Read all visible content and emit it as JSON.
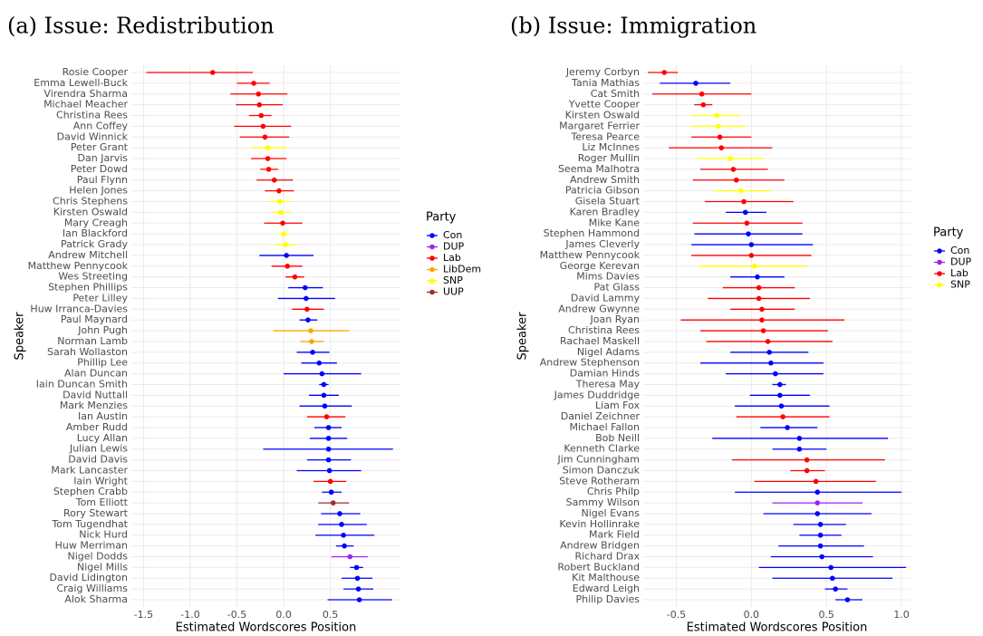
{
  "chart_data": [
    {
      "type": "errorbar",
      "title": "(a) Issue: Redistribution",
      "xlabel": "Estimated Wordscores Position",
      "ylabel": "Speaker",
      "legend_title": "Party",
      "parties": [
        {
          "name": "Con",
          "color": "#0000ff"
        },
        {
          "name": "DUP",
          "color": "#a020f0"
        },
        {
          "name": "Lab",
          "color": "#ff0000"
        },
        {
          "name": "LibDem",
          "color": "#ffa500"
        },
        {
          "name": "SNP",
          "color": "#ffff00"
        },
        {
          "name": "UUP",
          "color": "#a52a2a"
        }
      ],
      "xlim": [
        -1.63,
        1.25
      ],
      "xticks": [
        -1.5,
        {
          "value": -1,
          "label": "-1.0"
        },
        -0.5,
        {
          "value": 0,
          "label": "0.0"
        },
        0.5
      ],
      "grid": true,
      "categories": [
        "Rosie Cooper",
        "Emma Lewell-Buck",
        "Virendra Sharma",
        "Michael Meacher",
        "Christina Rees",
        "Ann Coffey",
        "David Winnick",
        "Peter Grant",
        "Dan Jarvis",
        "Peter Dowd",
        "Paul Flynn",
        "Helen Jones",
        "Chris Stephens",
        "Kirsten Oswald",
        "Mary Creagh",
        "Ian Blackford",
        "Patrick Grady",
        "Andrew Mitchell",
        "Matthew Pennycook",
        "Wes Streeting",
        "Stephen Phillips",
        "Peter Lilley",
        "Huw Irranca-Davies",
        "Paul Maynard",
        "John Pugh",
        "Norman Lamb",
        "Sarah Wollaston",
        "Phillip Lee",
        "Alan Duncan",
        "Iain Duncan Smith",
        "David Nuttall",
        "Mark Menzies",
        "Ian Austin",
        "Amber Rudd",
        "Lucy Allan",
        "Julian Lewis",
        "David Davis",
        "Mark Lancaster",
        "Iain Wright",
        "Stephen Crabb",
        "Tom Elliott",
        "Rory Stewart",
        "Tom Tugendhat",
        "Nick Hurd",
        "Huw Merriman",
        "Nigel Dodds",
        "Nigel Mills",
        "David Lidington",
        "Craig Williams",
        "Alok Sharma"
      ],
      "values": [
        -0.76,
        -0.32,
        -0.27,
        -0.26,
        -0.24,
        -0.22,
        -0.2,
        -0.17,
        -0.17,
        -0.16,
        -0.1,
        -0.05,
        -0.04,
        -0.03,
        -0.01,
        0,
        0.02,
        0.03,
        0.04,
        0.12,
        0.23,
        0.24,
        0.25,
        0.26,
        0.29,
        0.3,
        0.31,
        0.38,
        0.41,
        0.43,
        0.43,
        0.44,
        0.46,
        0.48,
        0.48,
        0.48,
        0.48,
        0.49,
        0.5,
        0.51,
        0.53,
        0.6,
        0.62,
        0.64,
        0.65,
        0.71,
        0.78,
        0.79,
        0.8,
        0.81
      ],
      "lower": [
        -1.47,
        -0.5,
        -0.57,
        -0.51,
        -0.37,
        -0.53,
        -0.47,
        -0.36,
        -0.35,
        -0.25,
        -0.29,
        -0.2,
        -0.15,
        -0.13,
        -0.21,
        -0.05,
        -0.09,
        -0.26,
        -0.13,
        0.02,
        0.05,
        -0.06,
        0.09,
        0.17,
        -0.11,
        0.18,
        0.14,
        0.19,
        0,
        0.38,
        0.27,
        0.17,
        0.25,
        0.33,
        0.28,
        -0.22,
        0.25,
        0.14,
        0.32,
        0.41,
        0.37,
        0.4,
        0.37,
        0.34,
        0.56,
        0.51,
        0.71,
        0.62,
        0.64,
        0.47
      ],
      "upper": [
        -0.33,
        -0.15,
        0.04,
        -0.01,
        -0.13,
        0.08,
        0.06,
        0.03,
        0.03,
        -0.06,
        0.1,
        0.11,
        0.07,
        0.08,
        0.2,
        0.06,
        0.14,
        0.32,
        0.2,
        0.22,
        0.42,
        0.55,
        0.43,
        0.36,
        0.7,
        0.43,
        0.49,
        0.57,
        0.83,
        0.48,
        0.59,
        0.73,
        0.66,
        0.62,
        0.68,
        1.17,
        0.72,
        0.83,
        0.67,
        0.62,
        0.7,
        0.82,
        0.89,
        0.97,
        0.75,
        0.9,
        0.85,
        0.95,
        0.96,
        1.16
      ],
      "party": [
        "Lab",
        "Lab",
        "Lab",
        "Lab",
        "Lab",
        "Lab",
        "Lab",
        "SNP",
        "Lab",
        "Lab",
        "Lab",
        "Lab",
        "SNP",
        "SNP",
        "Lab",
        "SNP",
        "SNP",
        "Con",
        "Lab",
        "Lab",
        "Con",
        "Con",
        "Lab",
        "Con",
        "LibDem",
        "LibDem",
        "Con",
        "Con",
        "Con",
        "Con",
        "Con",
        "Con",
        "Lab",
        "Con",
        "Con",
        "Con",
        "Con",
        "Con",
        "Lab",
        "Con",
        "UUP",
        "Con",
        "Con",
        "Con",
        "Con",
        "DUP",
        "Con",
        "Con",
        "Con",
        "Con"
      ]
    },
    {
      "type": "errorbar",
      "title": "(b) Issue: Immigration",
      "xlabel": "Estimated Wordscores Position",
      "ylabel": "Speaker",
      "legend_title": "Party",
      "parties": [
        {
          "name": "Con",
          "color": "#0000ff"
        },
        {
          "name": "DUP",
          "color": "#a020f0"
        },
        {
          "name": "Lab",
          "color": "#ff0000"
        },
        {
          "name": "SNP",
          "color": "#ffff00"
        }
      ],
      "xlim": [
        -0.72,
        1.06
      ],
      "xticks": [
        -0.5,
        {
          "value": 0,
          "label": "0.0"
        },
        0.5,
        {
          "value": 1,
          "label": "1.0"
        }
      ],
      "grid": true,
      "categories": [
        "Jeremy Corbyn",
        "Tania Mathias",
        "Cat Smith",
        "Yvette Cooper",
        "Kirsten Oswald",
        "Margaret Ferrier",
        "Teresa Pearce",
        "Liz McInnes",
        "Roger Mullin",
        "Seema Malhotra",
        "Andrew Smith",
        "Patricia Gibson",
        "Gisela Stuart",
        "Karen Bradley",
        "Mike Kane",
        "Stephen Hammond",
        "James Cleverly",
        "Matthew Pennycook",
        "George Kerevan",
        "Mims Davies",
        "Pat Glass",
        "David Lammy",
        "Andrew Gwynne",
        "Joan Ryan",
        "Christina Rees",
        "Rachael Maskell",
        "Nigel Adams",
        "Andrew Stephenson",
        "Damian Hinds",
        "Theresa May",
        "James Duddridge",
        "Liam Fox",
        "Daniel Zeichner",
        "Michael Fallon",
        "Bob Neill",
        "Kenneth Clarke",
        "Jim Cunningham",
        "Simon Danczuk",
        "Steve Rotheram",
        "Chris Philp",
        "Sammy Wilson",
        "Nigel Evans",
        "Kevin Hollinrake",
        "Mark Field",
        "Andrew Bridgen",
        "Richard Drax",
        "Robert Buckland",
        "Kit Malthouse",
        "Edward Leigh",
        "Philip Davies"
      ],
      "values": [
        -0.58,
        -0.37,
        -0.33,
        -0.32,
        -0.23,
        -0.22,
        -0.21,
        -0.2,
        -0.14,
        -0.12,
        -0.1,
        -0.07,
        -0.05,
        -0.04,
        -0.03,
        -0.02,
        0,
        0,
        0.02,
        0.04,
        0.05,
        0.05,
        0.07,
        0.07,
        0.08,
        0.11,
        0.12,
        0.13,
        0.16,
        0.19,
        0.19,
        0.2,
        0.21,
        0.24,
        0.32,
        0.32,
        0.37,
        0.37,
        0.43,
        0.44,
        0.44,
        0.44,
        0.46,
        0.46,
        0.46,
        0.47,
        0.53,
        0.54,
        0.56,
        0.64
      ],
      "lower": [
        -0.69,
        -0.61,
        -0.66,
        -0.38,
        -0.4,
        -0.4,
        -0.4,
        -0.55,
        -0.36,
        -0.34,
        -0.39,
        -0.25,
        -0.31,
        -0.17,
        -0.39,
        -0.38,
        -0.4,
        -0.4,
        -0.35,
        -0.14,
        -0.19,
        -0.29,
        -0.14,
        -0.47,
        -0.34,
        -0.3,
        -0.14,
        -0.34,
        -0.17,
        0.14,
        -0.01,
        -0.11,
        -0.1,
        0.06,
        -0.26,
        0.14,
        -0.13,
        0.26,
        0.02,
        -0.11,
        0.14,
        0.08,
        0.28,
        0.32,
        0.18,
        0.13,
        0.05,
        0.14,
        0.49,
        0.56
      ],
      "upper": [
        -0.49,
        -0.14,
        0,
        -0.26,
        -0.07,
        -0.04,
        0,
        0.14,
        0.08,
        0.11,
        0.22,
        0.13,
        0.28,
        0.1,
        0.34,
        0.34,
        0.41,
        0.4,
        0.37,
        0.22,
        0.29,
        0.39,
        0.29,
        0.62,
        0.51,
        0.54,
        0.38,
        0.48,
        0.48,
        0.23,
        0.39,
        0.52,
        0.52,
        0.44,
        0.91,
        0.5,
        0.89,
        0.49,
        0.83,
        1,
        0.74,
        0.8,
        0.63,
        0.6,
        0.75,
        0.81,
        1.03,
        0.94,
        0.64,
        0.74
      ],
      "party": [
        "Lab",
        "Con",
        "Lab",
        "Lab",
        "SNP",
        "SNP",
        "Lab",
        "Lab",
        "SNP",
        "Lab",
        "Lab",
        "SNP",
        "Lab",
        "Con",
        "Lab",
        "Con",
        "Con",
        "Lab",
        "SNP",
        "Con",
        "Lab",
        "Lab",
        "Lab",
        "Lab",
        "Lab",
        "Lab",
        "Con",
        "Con",
        "Con",
        "Con",
        "Con",
        "Con",
        "Lab",
        "Con",
        "Con",
        "Con",
        "Lab",
        "Lab",
        "Lab",
        "Con",
        "DUP",
        "Con",
        "Con",
        "Con",
        "Con",
        "Con",
        "Con",
        "Con",
        "Con",
        "Con"
      ]
    }
  ]
}
